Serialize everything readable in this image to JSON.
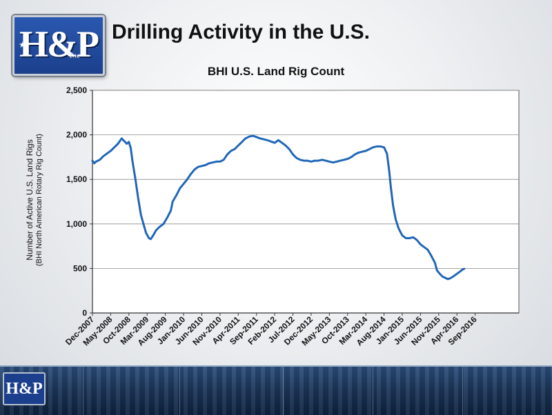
{
  "slide": {
    "title": "Drilling Activity in the U.S.",
    "logo": {
      "main": "H&P",
      "sub": "Inc"
    }
  },
  "colors": {
    "line": "#1f66b8",
    "title": "#111111",
    "brand": "#1b3f8c"
  },
  "chart_data": {
    "type": "line",
    "title": "BHI U.S. Land Rig Count",
    "ylabel": "Number of Active U.S. Land Rigs",
    "ylabel_sub": "(BHI North American Rotary Rig Count)",
    "xlabel": "",
    "ylim": [
      0,
      2500
    ],
    "yticks": [
      0,
      500,
      1000,
      1500,
      2000,
      2500
    ],
    "ytick_labels": [
      "0",
      "500",
      "1,000",
      "1,500",
      "2,000",
      "2,500"
    ],
    "xlim": [
      0,
      117
    ],
    "xticks": [
      {
        "label": "Dec-2007",
        "index": 0
      },
      {
        "label": "May-2008",
        "index": 5
      },
      {
        "label": "Oct-2008",
        "index": 10
      },
      {
        "label": "Mar-2009",
        "index": 15
      },
      {
        "label": "Aug-2009",
        "index": 20
      },
      {
        "label": "Jan-2010",
        "index": 25
      },
      {
        "label": "Jun-2010",
        "index": 30
      },
      {
        "label": "Nov-2010",
        "index": 35
      },
      {
        "label": "Apr-2011",
        "index": 40
      },
      {
        "label": "Sep-2011",
        "index": 45
      },
      {
        "label": "Feb-2012",
        "index": 50
      },
      {
        "label": "Jul-2012",
        "index": 55
      },
      {
        "label": "Dec-2012",
        "index": 60
      },
      {
        "label": "May-2013",
        "index": 65
      },
      {
        "label": "Oct-2013",
        "index": 70
      },
      {
        "label": "Mar-2014",
        "index": 75
      },
      {
        "label": "Aug-2014",
        "index": 80
      },
      {
        "label": "Jan-2015",
        "index": 85
      },
      {
        "label": "Jun-2015",
        "index": 90
      },
      {
        "label": "Nov-2015",
        "index": 95
      },
      {
        "label": "Apr-2016",
        "index": 100
      },
      {
        "label": "Sep-2016",
        "index": 105
      }
    ],
    "grid": true,
    "series": [
      {
        "points": [
          [
            0,
            1710
          ],
          [
            0.5,
            1680
          ],
          [
            1,
            1700
          ],
          [
            2,
            1720
          ],
          [
            3,
            1760
          ],
          [
            4,
            1790
          ],
          [
            5,
            1820
          ],
          [
            6,
            1860
          ],
          [
            7,
            1900
          ],
          [
            8,
            1960
          ],
          [
            8.7,
            1930
          ],
          [
            9.4,
            1900
          ],
          [
            10,
            1920
          ],
          [
            10.5,
            1850
          ],
          [
            11,
            1700
          ],
          [
            11.8,
            1500
          ],
          [
            12.5,
            1300
          ],
          [
            13.3,
            1100
          ],
          [
            14,
            1000
          ],
          [
            14.7,
            900
          ],
          [
            15.5,
            840
          ],
          [
            16,
            830
          ],
          [
            16.8,
            880
          ],
          [
            17.5,
            930
          ],
          [
            18.5,
            970
          ],
          [
            19.5,
            1000
          ],
          [
            20.5,
            1070
          ],
          [
            21.5,
            1150
          ],
          [
            22,
            1250
          ],
          [
            23,
            1320
          ],
          [
            24,
            1400
          ],
          [
            25,
            1450
          ],
          [
            26,
            1500
          ],
          [
            27,
            1560
          ],
          [
            28,
            1610
          ],
          [
            29,
            1640
          ],
          [
            30,
            1650
          ],
          [
            31,
            1660
          ],
          [
            32,
            1680
          ],
          [
            33,
            1690
          ],
          [
            34,
            1700
          ],
          [
            35,
            1700
          ],
          [
            36,
            1720
          ],
          [
            37,
            1780
          ],
          [
            38,
            1820
          ],
          [
            39,
            1840
          ],
          [
            40,
            1880
          ],
          [
            41,
            1920
          ],
          [
            42,
            1960
          ],
          [
            43,
            1980
          ],
          [
            44,
            1990
          ],
          [
            45,
            1975
          ],
          [
            46,
            1960
          ],
          [
            47,
            1950
          ],
          [
            48,
            1940
          ],
          [
            49,
            1925
          ],
          [
            50,
            1910
          ],
          [
            51,
            1940
          ],
          [
            52,
            1910
          ],
          [
            53,
            1880
          ],
          [
            54,
            1840
          ],
          [
            55,
            1780
          ],
          [
            56,
            1740
          ],
          [
            57,
            1720
          ],
          [
            58,
            1710
          ],
          [
            59,
            1710
          ],
          [
            60,
            1700
          ],
          [
            61,
            1710
          ],
          [
            62,
            1710
          ],
          [
            63,
            1720
          ],
          [
            64,
            1710
          ],
          [
            65,
            1700
          ],
          [
            66,
            1690
          ],
          [
            67,
            1700
          ],
          [
            68,
            1710
          ],
          [
            69,
            1720
          ],
          [
            70,
            1730
          ],
          [
            71,
            1750
          ],
          [
            72,
            1780
          ],
          [
            73,
            1800
          ],
          [
            74,
            1810
          ],
          [
            75,
            1820
          ],
          [
            76,
            1840
          ],
          [
            77,
            1860
          ],
          [
            78,
            1870
          ],
          [
            79,
            1870
          ],
          [
            80,
            1860
          ],
          [
            80.8,
            1790
          ],
          [
            81.4,
            1600
          ],
          [
            81.9,
            1400
          ],
          [
            82.5,
            1200
          ],
          [
            83.2,
            1050
          ],
          [
            84,
            950
          ],
          [
            85,
            870
          ],
          [
            86,
            840
          ],
          [
            87,
            840
          ],
          [
            88,
            850
          ],
          [
            89,
            820
          ],
          [
            90,
            770
          ],
          [
            91,
            740
          ],
          [
            92,
            710
          ],
          [
            93,
            640
          ],
          [
            94,
            560
          ],
          [
            94.5,
            480
          ],
          [
            95.3,
            440
          ],
          [
            96,
            410
          ],
          [
            97,
            390
          ],
          [
            97.5,
            380
          ],
          [
            98.2,
            390
          ],
          [
            99,
            410
          ],
          [
            100,
            440
          ],
          [
            101,
            470
          ],
          [
            101.6,
            490
          ],
          [
            102,
            495
          ]
        ]
      }
    ]
  },
  "footer": {
    "logo": "H&P"
  }
}
